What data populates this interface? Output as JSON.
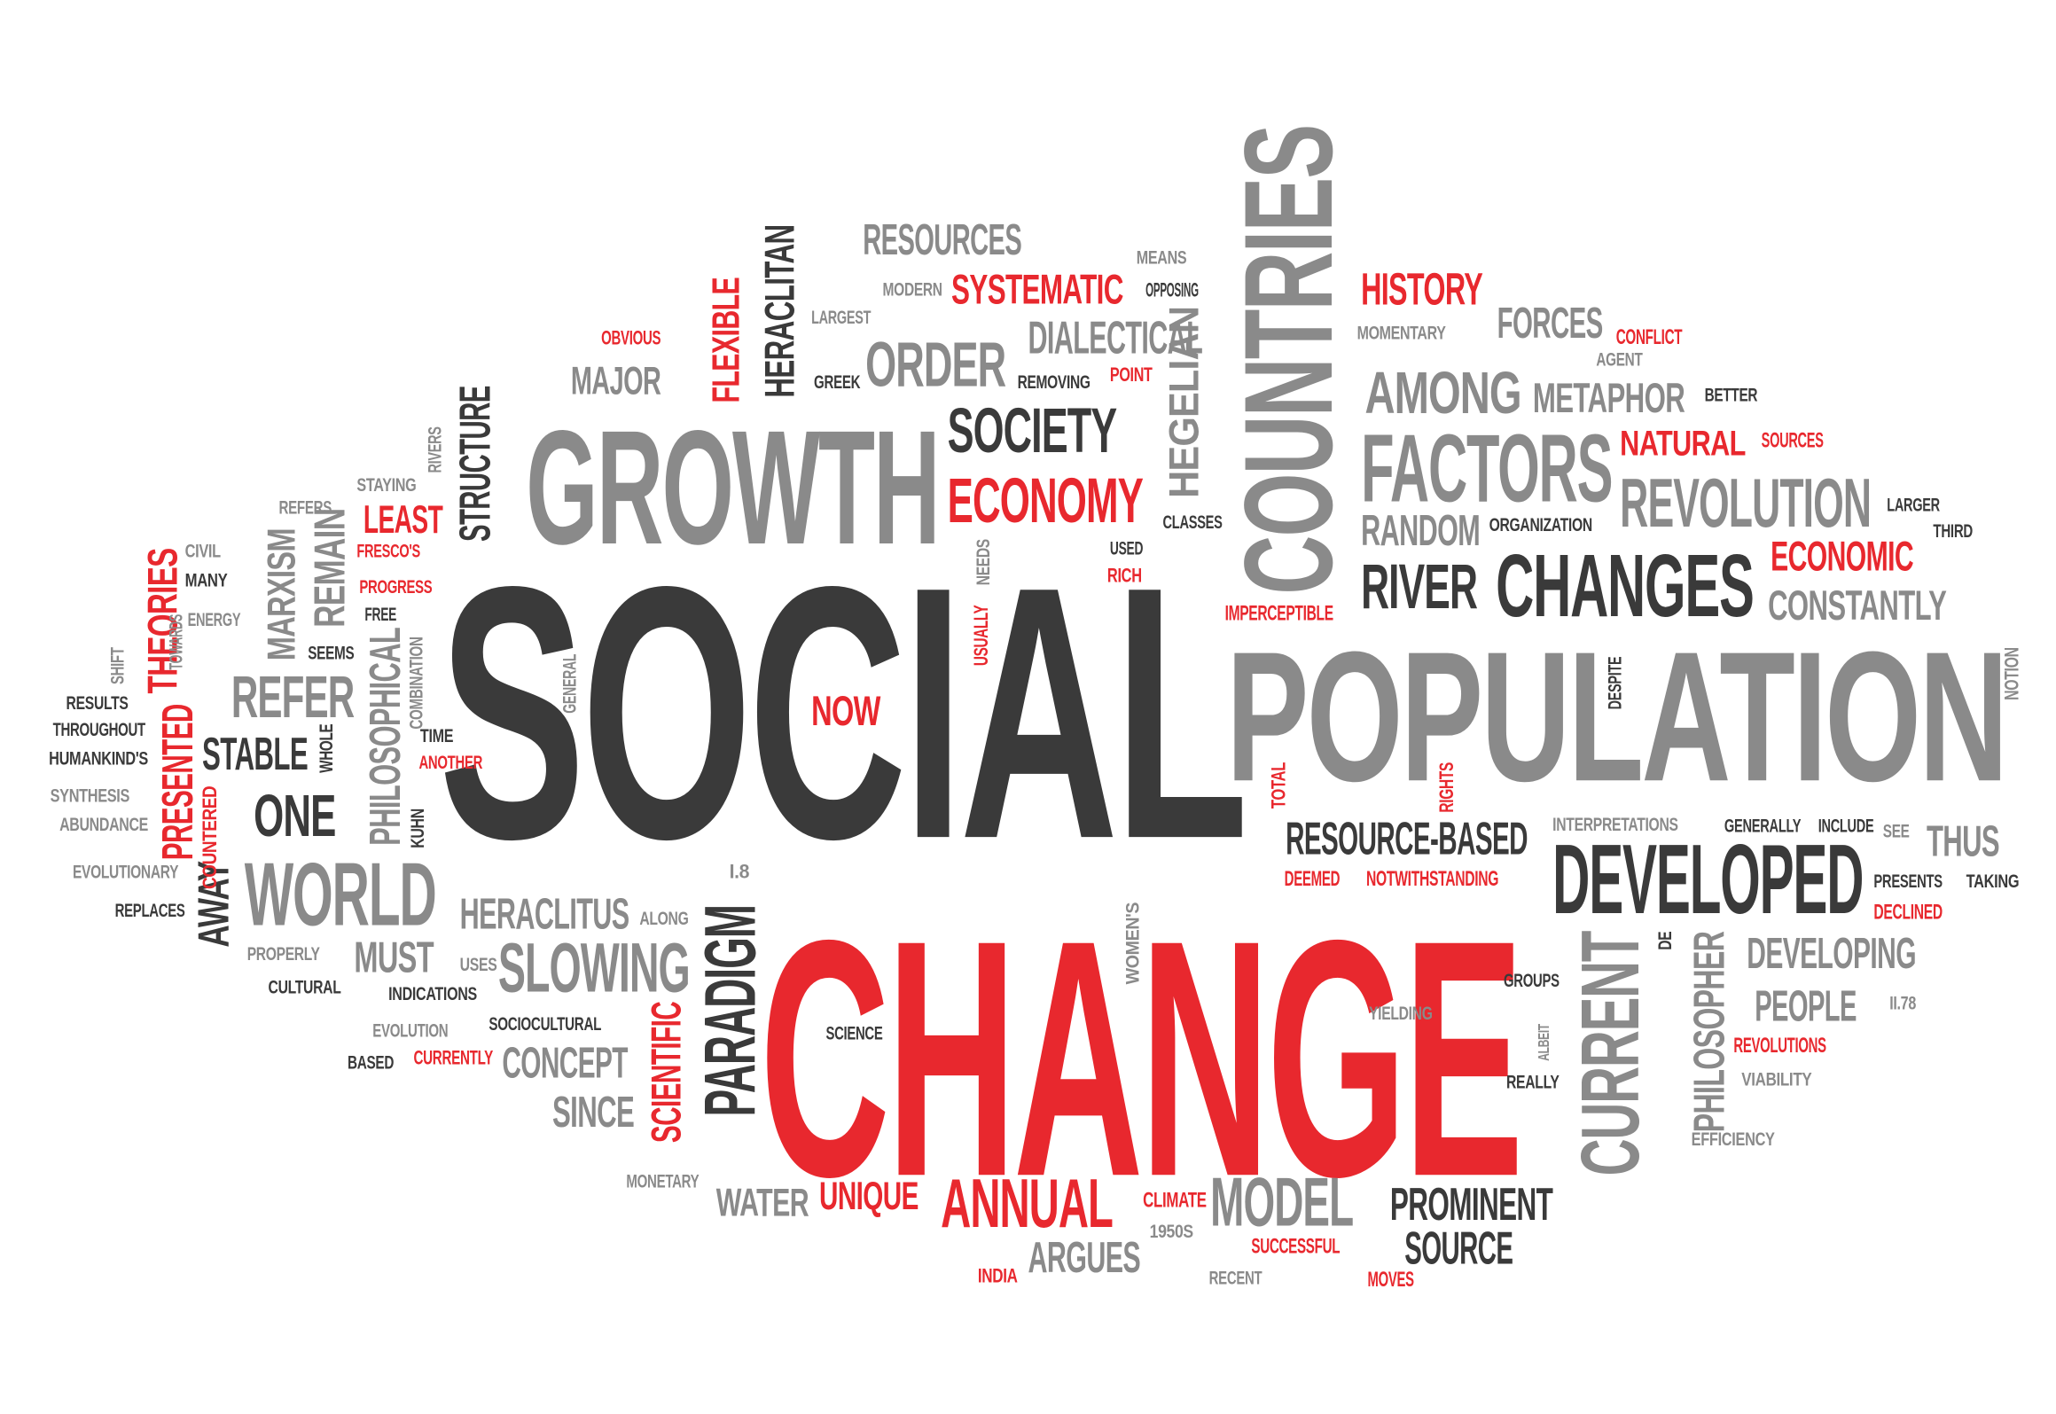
{
  "colors": {
    "dark": "#3a3a3a",
    "gray": "#8a8a8a",
    "red": "#e8282e"
  },
  "words": [
    {
      "text": "SOCIAL",
      "tone": "dark"
    },
    {
      "text": "CHANGE",
      "tone": "red"
    },
    {
      "text": "POPULATION",
      "tone": "gray"
    },
    {
      "text": "COUNTRIES",
      "tone": "gray"
    },
    {
      "text": "GROWTH",
      "tone": "gray"
    },
    {
      "text": "DEVELOPED",
      "tone": "dark"
    },
    {
      "text": "CHANGES",
      "tone": "dark"
    },
    {
      "text": "FACTORS",
      "tone": "gray"
    },
    {
      "text": "REVOLUTION",
      "tone": "gray"
    },
    {
      "text": "WORLD",
      "tone": "gray"
    },
    {
      "text": "CURRENT",
      "tone": "gray"
    },
    {
      "text": "ANNUAL",
      "tone": "red"
    },
    {
      "text": "ECONOMY",
      "tone": "red"
    },
    {
      "text": "SOCIETY",
      "tone": "dark"
    },
    {
      "text": "ORDER",
      "tone": "gray"
    },
    {
      "text": "AMONG",
      "tone": "gray"
    },
    {
      "text": "RIVER",
      "tone": "dark"
    },
    {
      "text": "SLOWING",
      "tone": "gray"
    },
    {
      "text": "PARADIGM",
      "tone": "dark"
    },
    {
      "text": "MODEL",
      "tone": "gray"
    },
    {
      "text": "PROMINENT",
      "tone": "dark"
    },
    {
      "text": "SOURCE",
      "tone": "dark"
    },
    {
      "text": "RESOURCE-BASED",
      "tone": "dark"
    },
    {
      "text": "DEVELOPING",
      "tone": "gray"
    },
    {
      "text": "PEOPLE",
      "tone": "gray"
    },
    {
      "text": "PHILOSOPHER",
      "tone": "gray"
    },
    {
      "text": "CONSTANTLY",
      "tone": "gray"
    },
    {
      "text": "RANDOM",
      "tone": "gray"
    },
    {
      "text": "METAPHOR",
      "tone": "gray"
    },
    {
      "text": "FORCES",
      "tone": "gray"
    },
    {
      "text": "HISTORY",
      "tone": "red"
    },
    {
      "text": "NATURAL",
      "tone": "red"
    },
    {
      "text": "ECONOMIC",
      "tone": "red"
    },
    {
      "text": "DIALECTICAL",
      "tone": "gray"
    },
    {
      "text": "SYSTEMATIC",
      "tone": "red"
    },
    {
      "text": "RESOURCES",
      "tone": "gray"
    },
    {
      "text": "MAJOR",
      "tone": "gray"
    },
    {
      "text": "FLEXIBLE",
      "tone": "red"
    },
    {
      "text": "HERACLITAN",
      "tone": "dark"
    },
    {
      "text": "HEGELIAN",
      "tone": "gray"
    },
    {
      "text": "STRUCTURE",
      "tone": "dark"
    },
    {
      "text": "LEAST",
      "tone": "red"
    },
    {
      "text": "REMAIN",
      "tone": "gray"
    },
    {
      "text": "MARXISM",
      "tone": "gray"
    },
    {
      "text": "REFER",
      "tone": "gray"
    },
    {
      "text": "THEORIES",
      "tone": "red"
    },
    {
      "text": "PRESENTED",
      "tone": "red"
    },
    {
      "text": "STABLE",
      "tone": "dark"
    },
    {
      "text": "ONE",
      "tone": "dark"
    },
    {
      "text": "AWAY",
      "tone": "dark"
    },
    {
      "text": "PHILOSOPHICAL",
      "tone": "gray"
    },
    {
      "text": "MUST",
      "tone": "gray"
    },
    {
      "text": "HERACLITUS",
      "tone": "gray"
    },
    {
      "text": "CONCEPT",
      "tone": "gray"
    },
    {
      "text": "SINCE",
      "tone": "gray"
    },
    {
      "text": "SCIENTIFIC",
      "tone": "red"
    },
    {
      "text": "WATER",
      "tone": "gray"
    },
    {
      "text": "UNIQUE",
      "tone": "red"
    },
    {
      "text": "ARGUES",
      "tone": "gray"
    },
    {
      "text": "NOW",
      "tone": "red"
    },
    {
      "text": "RICH",
      "tone": "red"
    },
    {
      "text": "USED",
      "tone": "dark"
    },
    {
      "text": "THUS",
      "tone": "gray"
    },
    {
      "text": "CLIMATE",
      "tone": "red"
    },
    {
      "text": "SUCCESSFUL",
      "tone": "red"
    },
    {
      "text": "MOVES",
      "tone": "red"
    },
    {
      "text": "REVOLUTIONS",
      "tone": "red"
    },
    {
      "text": "DECLINED",
      "tone": "red"
    },
    {
      "text": "DEEMED",
      "tone": "red"
    },
    {
      "text": "NOTWITHSTANDING",
      "tone": "red"
    },
    {
      "text": "IMPERCEPTIBLE",
      "tone": "red"
    },
    {
      "text": "CONFLICT",
      "tone": "red"
    },
    {
      "text": "SOURCES",
      "tone": "red"
    },
    {
      "text": "POINT",
      "tone": "red"
    },
    {
      "text": "OBVIOUS",
      "tone": "red"
    },
    {
      "text": "FRESCO'S",
      "tone": "red"
    },
    {
      "text": "PROGRESS",
      "tone": "red"
    },
    {
      "text": "ANOTHER",
      "tone": "red"
    },
    {
      "text": "CURRENTLY",
      "tone": "red"
    },
    {
      "text": "INDIA",
      "tone": "red"
    },
    {
      "text": "TOTAL",
      "tone": "red"
    },
    {
      "text": "RIGHTS",
      "tone": "red"
    },
    {
      "text": "USUALLY",
      "tone": "red"
    },
    {
      "text": "COUNTERED",
      "tone": "red"
    },
    {
      "text": "MEANS",
      "tone": "gray"
    },
    {
      "text": "OPPOSING",
      "tone": "dark"
    },
    {
      "text": "MODERN",
      "tone": "gray"
    },
    {
      "text": "LARGEST",
      "tone": "gray"
    },
    {
      "text": "GREEK",
      "tone": "dark"
    },
    {
      "text": "REMOVING",
      "tone": "dark"
    },
    {
      "text": "MOMENTARY",
      "tone": "gray"
    },
    {
      "text": "AGENT",
      "tone": "gray"
    },
    {
      "text": "BETTER",
      "tone": "dark"
    },
    {
      "text": "ORGANIZATION",
      "tone": "dark"
    },
    {
      "text": "LARGER",
      "tone": "dark"
    },
    {
      "text": "THIRD",
      "tone": "dark"
    },
    {
      "text": "NOTION",
      "tone": "gray"
    },
    {
      "text": "CLASSES",
      "tone": "dark"
    },
    {
      "text": "NEEDS",
      "tone": "gray"
    },
    {
      "text": "DESPITE",
      "tone": "dark"
    },
    {
      "text": "INTERPRETATIONS",
      "tone": "gray"
    },
    {
      "text": "GENERALLY",
      "tone": "dark"
    },
    {
      "text": "INCLUDE",
      "tone": "dark"
    },
    {
      "text": "SEE",
      "tone": "gray"
    },
    {
      "text": "PRESENTS",
      "tone": "dark"
    },
    {
      "text": "TAKING",
      "tone": "dark"
    },
    {
      "text": "II.78",
      "tone": "gray"
    },
    {
      "text": "VIABILITY",
      "tone": "gray"
    },
    {
      "text": "EFFICIENCY",
      "tone": "gray"
    },
    {
      "text": "GROUPS",
      "tone": "dark"
    },
    {
      "text": "YIELDING",
      "tone": "gray"
    },
    {
      "text": "ALBEIT",
      "tone": "gray"
    },
    {
      "text": "REALLY",
      "tone": "dark"
    },
    {
      "text": "DE",
      "tone": "dark"
    },
    {
      "text": "WOMEN'S",
      "tone": "gray"
    },
    {
      "text": "SCIENCE",
      "tone": "dark"
    },
    {
      "text": "1950S",
      "tone": "gray"
    },
    {
      "text": "RECENT",
      "tone": "gray"
    },
    {
      "text": "MONETARY",
      "tone": "gray"
    },
    {
      "text": "I.8",
      "tone": "gray"
    },
    {
      "text": "ALONG",
      "tone": "gray"
    },
    {
      "text": "USES",
      "tone": "gray"
    },
    {
      "text": "INDICATIONS",
      "tone": "dark"
    },
    {
      "text": "SOCIOCULTURAL",
      "tone": "dark"
    },
    {
      "text": "EVOLUTION",
      "tone": "gray"
    },
    {
      "text": "BASED",
      "tone": "dark"
    },
    {
      "text": "CULTURAL",
      "tone": "dark"
    },
    {
      "text": "PROPERLY",
      "tone": "gray"
    },
    {
      "text": "REPLACES",
      "tone": "dark"
    },
    {
      "text": "EVOLUTIONARY",
      "tone": "gray"
    },
    {
      "text": "ABUNDANCE",
      "tone": "gray"
    },
    {
      "text": "SYNTHESIS",
      "tone": "gray"
    },
    {
      "text": "HUMANKIND'S",
      "tone": "dark"
    },
    {
      "text": "THROUGHOUT",
      "tone": "dark"
    },
    {
      "text": "RESULTS",
      "tone": "dark"
    },
    {
      "text": "SHIFT",
      "tone": "gray"
    },
    {
      "text": "TOWARDS",
      "tone": "gray"
    },
    {
      "text": "ENERGY",
      "tone": "gray"
    },
    {
      "text": "MANY",
      "tone": "dark"
    },
    {
      "text": "CIVIL",
      "tone": "gray"
    },
    {
      "text": "REFERS",
      "tone": "gray"
    },
    {
      "text": "STAYING",
      "tone": "gray"
    },
    {
      "text": "RIVERS",
      "tone": "gray"
    },
    {
      "text": "SEEMS",
      "tone": "dark"
    },
    {
      "text": "FREE",
      "tone": "dark"
    },
    {
      "text": "COMBINATION",
      "tone": "gray"
    },
    {
      "text": "WHOLE",
      "tone": "dark"
    },
    {
      "text": "TIME",
      "tone": "dark"
    },
    {
      "text": "KUHN",
      "tone": "dark"
    },
    {
      "text": "GENERAL",
      "tone": "gray"
    }
  ]
}
